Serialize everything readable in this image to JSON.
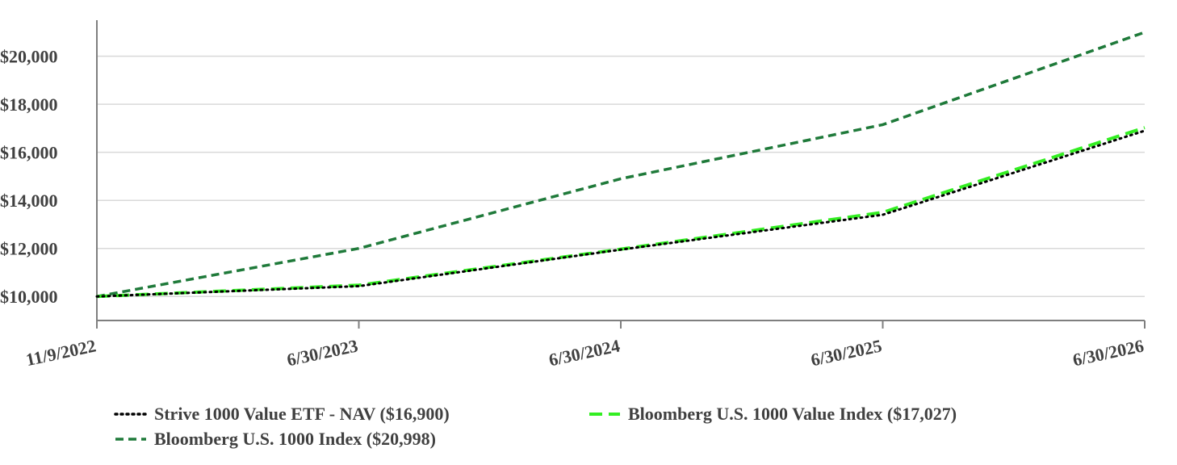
{
  "chart_data": {
    "type": "line",
    "title": "",
    "xlabel": "",
    "ylabel": "",
    "x": [
      "11/9/2022",
      "6/30/2023",
      "6/30/2024",
      "6/30/2025",
      "6/30/2026"
    ],
    "ylim": [
      9000,
      21500
    ],
    "yticks": [
      10000,
      12000,
      14000,
      16000,
      18000,
      20000
    ],
    "ytick_labels": [
      "$10,000",
      "$12,000",
      "$14,000",
      "$16,000",
      "$18,000",
      "$20,000"
    ],
    "grid": "horizontal",
    "legend_position": "bottom",
    "series": [
      {
        "name": "Strive 1000 Value ETF - NAV ($16,900)",
        "values": [
          10000,
          10430,
          11950,
          13400,
          16900
        ],
        "color": "#000000",
        "style": "dotted"
      },
      {
        "name": "Bloomberg U.S. 1000 Value Index ($17,027)",
        "values": [
          10000,
          10470,
          11970,
          13500,
          17027
        ],
        "color": "#33ee22",
        "style": "dashed"
      },
      {
        "name": "Bloomberg U.S. 1000 Index ($20,998)",
        "values": [
          10000,
          12000,
          14900,
          17150,
          20998
        ],
        "color": "#1f7a3a",
        "style": "dashed"
      }
    ]
  }
}
